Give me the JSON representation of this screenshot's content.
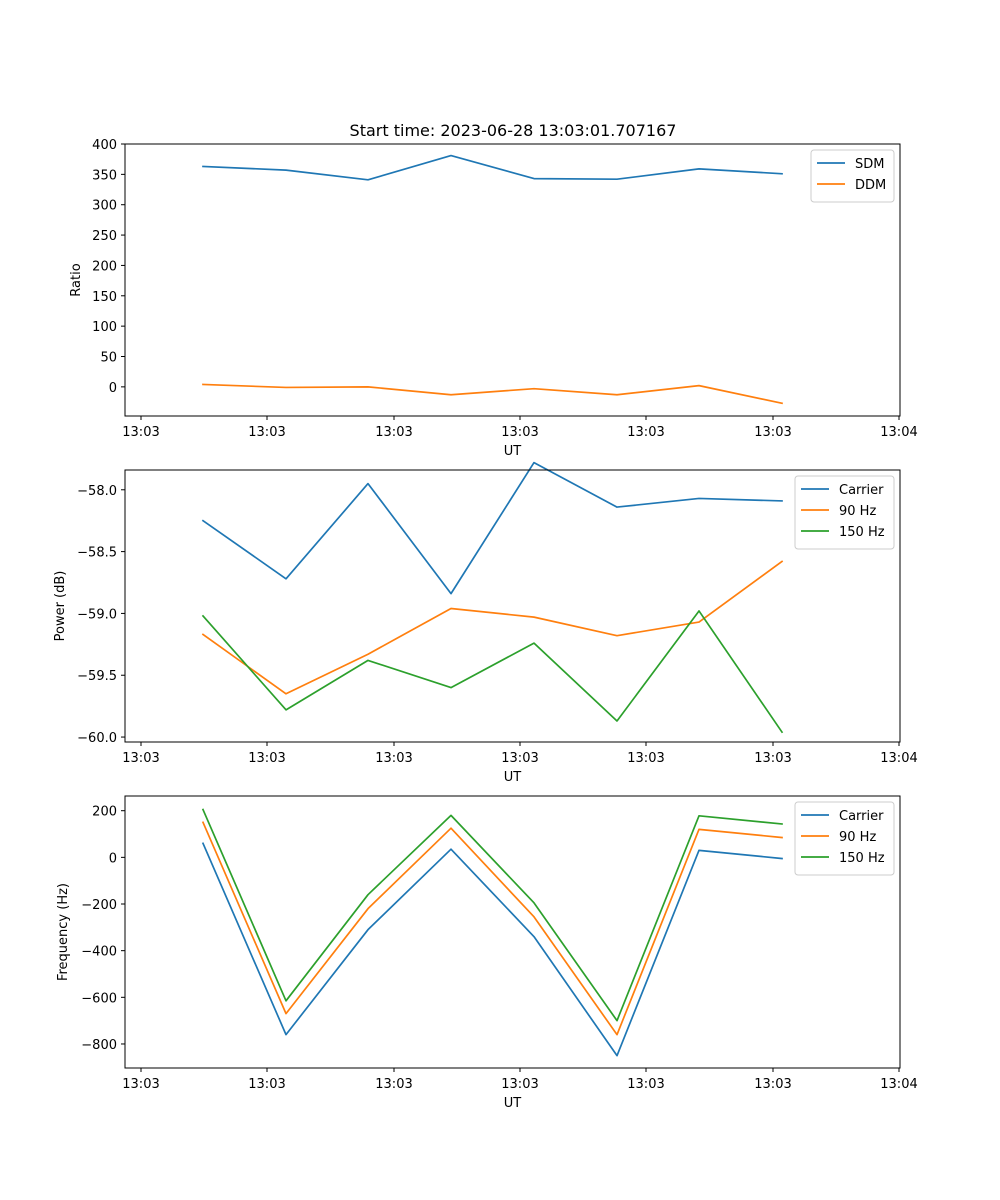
{
  "title": "Start time: 2023-06-28 13:03:01.707167",
  "chart_data": [
    {
      "type": "line",
      "title": "Start time: 2023-06-28 13:03:01.707167",
      "xlabel": "UT",
      "ylabel": "Ratio",
      "x_tick_labels": [
        "13:03",
        "13:03",
        "13:03",
        "13:03",
        "13:03",
        "13:03",
        "13:04"
      ],
      "y_ticks": [
        0,
        50,
        100,
        150,
        200,
        250,
        300,
        350,
        400
      ],
      "y_tick_labels": [
        "0",
        "50",
        "100",
        "150",
        "200",
        "250",
        "300",
        "350",
        "400"
      ],
      "ylim": [
        -48,
        400
      ],
      "legend": "top-right",
      "grid": false,
      "series": [
        {
          "name": "SDM",
          "color": "#1f77b4",
          "values": [
            363,
            357,
            341,
            381,
            343,
            342,
            359,
            351
          ]
        },
        {
          "name": "DDM",
          "color": "#ff7f0e",
          "values": [
            4,
            -1,
            0,
            -13,
            -3,
            -13,
            2,
            -27
          ]
        }
      ]
    },
    {
      "type": "line",
      "xlabel": "UT",
      "ylabel": "Power (dB)",
      "x_tick_labels": [
        "13:03",
        "13:03",
        "13:03",
        "13:03",
        "13:03",
        "13:03",
        "13:04"
      ],
      "y_ticks": [
        -60.0,
        -59.5,
        -59.0,
        -58.5,
        -58.0
      ],
      "y_tick_labels": [
        "−60.0",
        "−59.5",
        "−59.0",
        "−58.5",
        "−58.0"
      ],
      "ylim": [
        -60.04,
        -57.84
      ],
      "legend": "top-right",
      "grid": false,
      "series": [
        {
          "name": "Carrier",
          "color": "#1f77b4",
          "values": [
            -58.25,
            -58.72,
            -57.95,
            -58.84,
            -57.78,
            -58.14,
            -58.07,
            -58.09
          ]
        },
        {
          "name": "90 Hz",
          "color": "#ff7f0e",
          "values": [
            -59.17,
            -59.65,
            -59.33,
            -58.96,
            -59.03,
            -59.18,
            -59.07,
            -58.58
          ]
        },
        {
          "name": "150 Hz",
          "color": "#2ca02c",
          "values": [
            -59.02,
            -59.78,
            -59.38,
            -59.6,
            -59.24,
            -59.87,
            -58.98,
            -59.96
          ]
        }
      ]
    },
    {
      "type": "line",
      "xlabel": "UT",
      "ylabel": "Frequency (Hz)",
      "x_tick_labels": [
        "13:03",
        "13:03",
        "13:03",
        "13:03",
        "13:03",
        "13:03",
        "13:04"
      ],
      "y_ticks": [
        -800,
        -600,
        -400,
        -200,
        0,
        200
      ],
      "y_tick_labels": [
        "−800",
        "−600",
        "−400",
        "−200",
        "0",
        "200"
      ],
      "ylim": [
        -903,
        263
      ],
      "legend": "top-right",
      "grid": false,
      "series": [
        {
          "name": "Carrier",
          "color": "#1f77b4",
          "values": [
            60,
            -760,
            -310,
            35,
            -340,
            -850,
            30,
            -5
          ]
        },
        {
          "name": "90 Hz",
          "color": "#ff7f0e",
          "values": [
            150,
            -670,
            -220,
            125,
            -255,
            -760,
            120,
            85
          ]
        },
        {
          "name": "150 Hz",
          "color": "#2ca02c",
          "values": [
            205,
            -615,
            -160,
            180,
            -195,
            -700,
            178,
            143
          ]
        }
      ]
    }
  ]
}
